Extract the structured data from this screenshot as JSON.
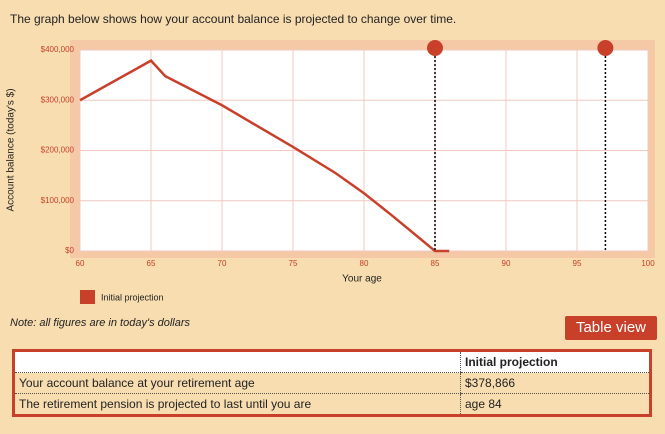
{
  "intro": "The graph below shows how your account balance is projected to change over time.",
  "chart_data": {
    "type": "line",
    "x": [
      60,
      65,
      66,
      70,
      75,
      78,
      80,
      82,
      85,
      86
    ],
    "series": [
      {
        "name": "Initial projection",
        "color": "#c8402a",
        "values": [
          300000,
          378866,
          348000,
          290000,
          207000,
          155000,
          115000,
          70000,
          0,
          0
        ]
      }
    ],
    "xlim": [
      60,
      100
    ],
    "xticks": [
      60,
      65,
      70,
      75,
      80,
      85,
      90,
      95,
      100
    ],
    "ylim": [
      0,
      400000
    ],
    "yticks": [
      {
        "value": 0,
        "label": "$0"
      },
      {
        "value": 100000,
        "label": "$100,000"
      },
      {
        "value": 200000,
        "label": "$200,000"
      },
      {
        "value": 300000,
        "label": "$300,000"
      },
      {
        "value": 400000,
        "label": "$400,000"
      }
    ],
    "xlabel": "Your age",
    "ylabel": "Account balance (today's $)",
    "markers": [
      85,
      97
    ],
    "grid": true
  },
  "note": "Note: all figures are in today's dollars",
  "button": "Table view",
  "table": {
    "header": "Initial projection",
    "rows": [
      [
        "Your account balance at your retirement age",
        "$378,866"
      ],
      [
        "The retirement pension is projected to last until you are",
        "age 84"
      ]
    ]
  }
}
